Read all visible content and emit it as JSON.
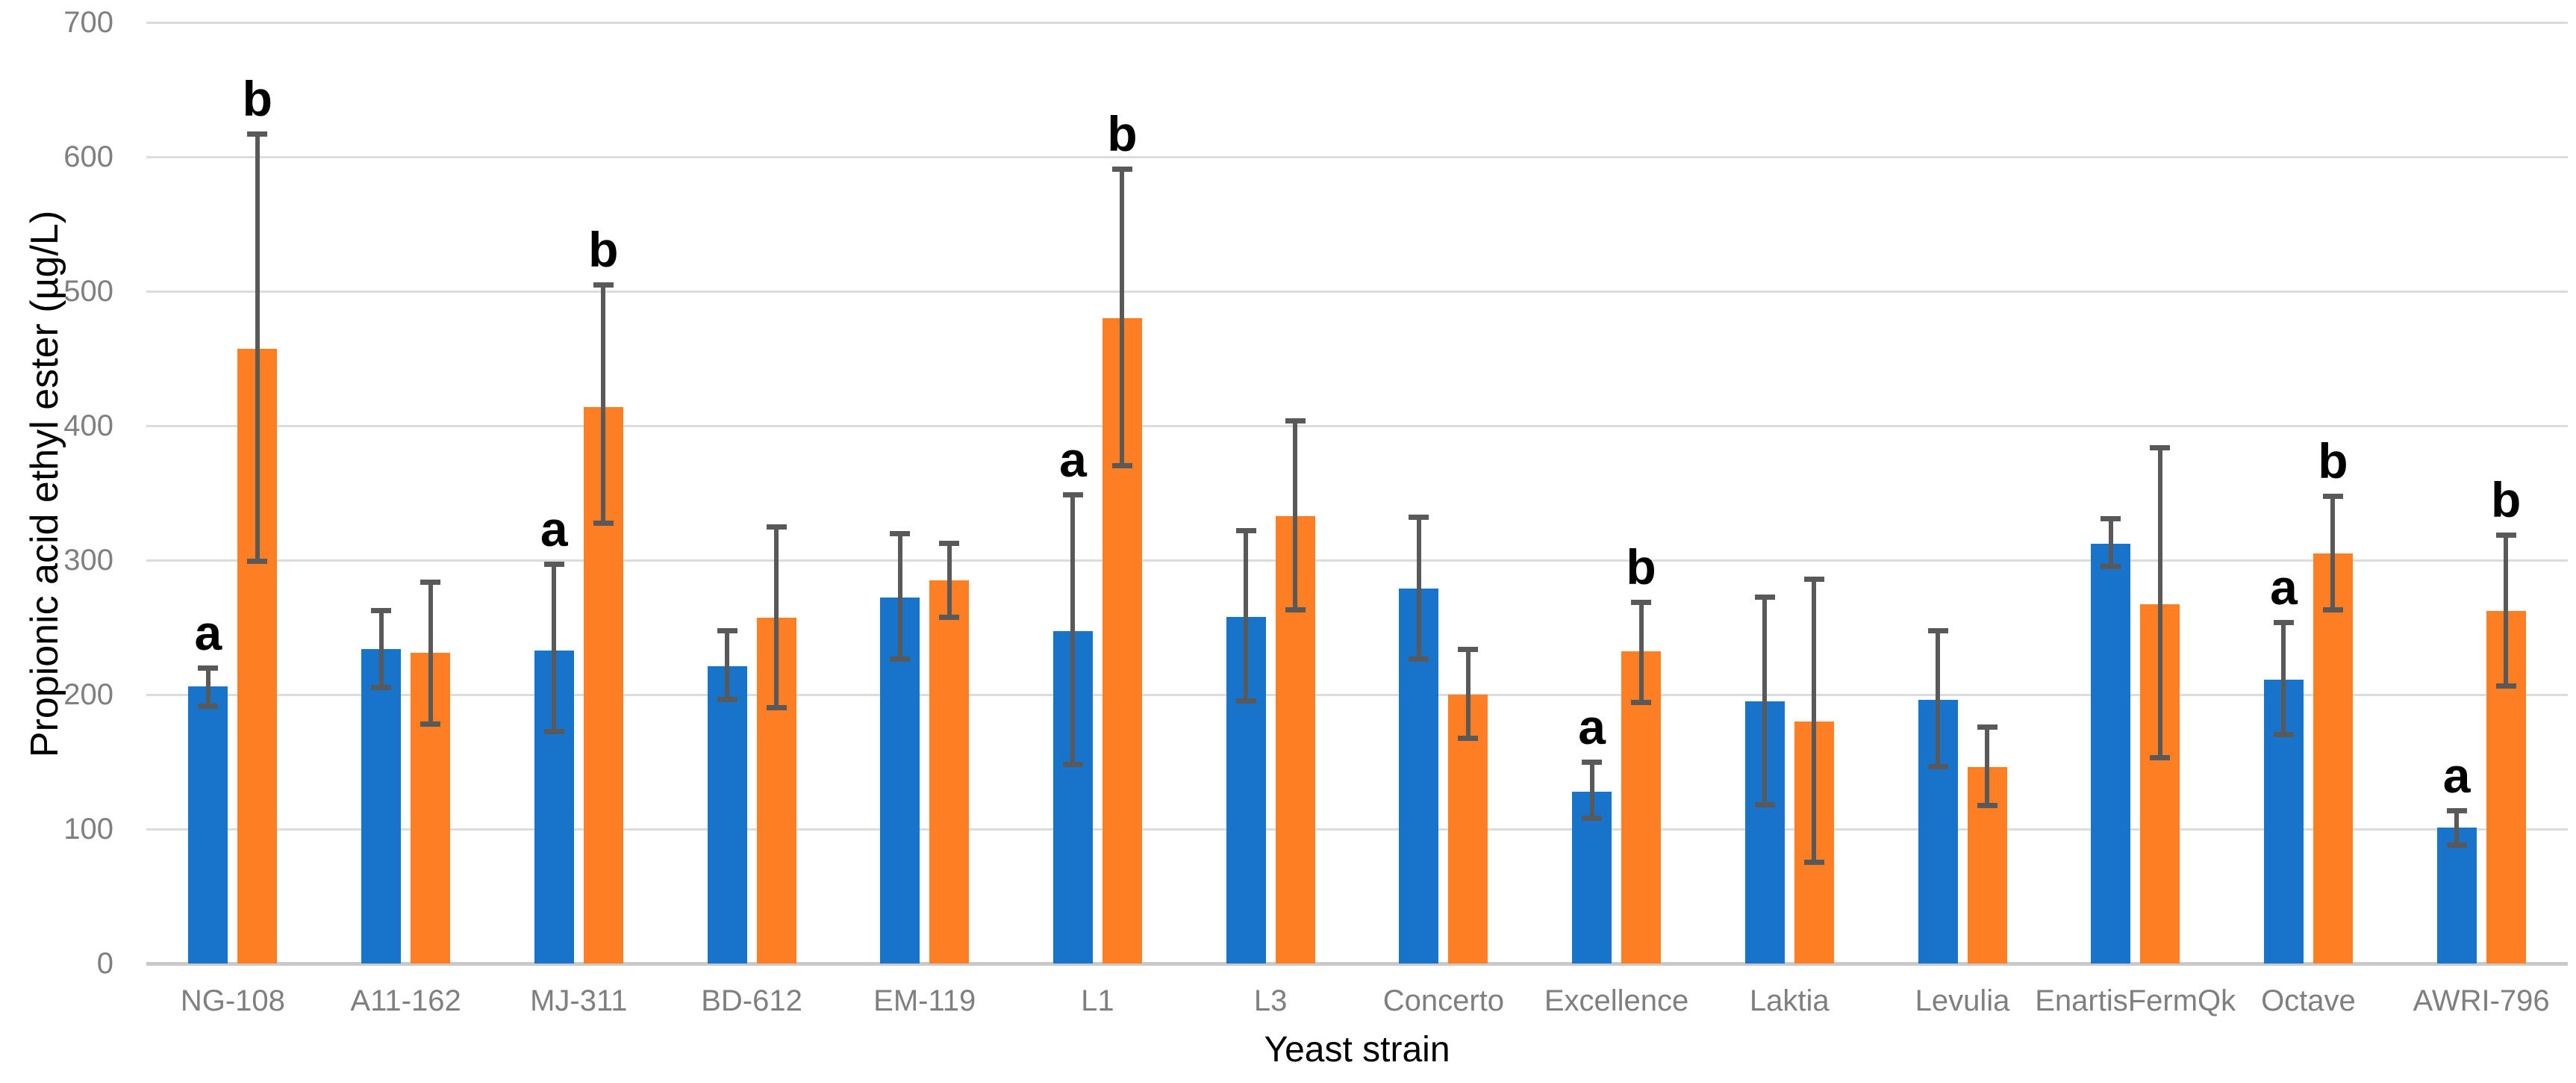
{
  "chart_data": {
    "type": "bar",
    "title": "",
    "xlabel": "Yeast strain",
    "ylabel": "Propionic acid ethyl ester (µg/L)",
    "ylim": [
      0,
      700
    ],
    "ytick_step": 100,
    "ytick_labels": [
      "0",
      "100",
      "200",
      "300",
      "400",
      "500",
      "600",
      "700"
    ],
    "grid": true,
    "legend": null,
    "categories": [
      "NG-108",
      "A11-162",
      "MJ-311",
      "BD-612",
      "EM-119",
      "L1",
      "L3",
      "Concerto",
      "Excellence",
      "Laktia",
      "Levulia",
      "EnartisFermQk",
      "Octave",
      "AWRI-796"
    ],
    "series": [
      {
        "name": "blue",
        "color": "#1774CA",
        "values": [
          206,
          234,
          233,
          221,
          272,
          247,
          258,
          279,
          128,
          195,
          196,
          312,
          211,
          101
        ],
        "error_top": [
          220,
          263,
          297,
          248,
          320,
          349,
          322,
          332,
          150,
          273,
          248,
          331,
          254,
          114
        ],
        "error_bottom": [
          191,
          205,
          172,
          196,
          226,
          148,
          195,
          226,
          108,
          118,
          146,
          295,
          170,
          88
        ],
        "sig_letters": [
          "a",
          null,
          "a",
          null,
          null,
          "a",
          null,
          null,
          "a",
          null,
          null,
          null,
          "a",
          "a"
        ]
      },
      {
        "name": "orange",
        "color": "#FD7E23",
        "values": [
          457,
          231,
          414,
          257,
          285,
          480,
          333,
          200,
          232,
          180,
          146,
          267,
          305,
          262
        ],
        "error_top": [
          617,
          284,
          505,
          325,
          313,
          591,
          404,
          234,
          269,
          286,
          176,
          384,
          348,
          319
        ],
        "error_bottom": [
          299,
          178,
          327,
          190,
          257,
          370,
          263,
          167,
          194,
          75,
          117,
          153,
          263,
          206
        ],
        "sig_letters": [
          "b",
          null,
          "b",
          null,
          null,
          "b",
          null,
          null,
          "b",
          null,
          null,
          null,
          "b",
          "b"
        ]
      }
    ],
    "style": {
      "error_bar": "#595959",
      "gridline": "#DCDCDC",
      "axis_line": "#C9C9C9",
      "tick_label_color": "#7F7F7F",
      "category_label_color": "#7F7F7F",
      "title_color": "#000000",
      "sig_letter_color": "#000000",
      "background": "#FFFFFF"
    }
  }
}
